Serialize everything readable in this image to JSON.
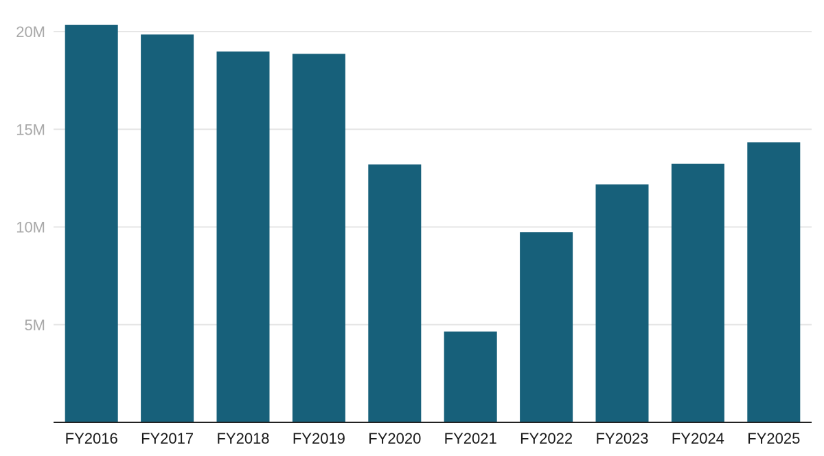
{
  "chart_data": {
    "type": "bar",
    "categories": [
      "FY2016",
      "FY2017",
      "FY2018",
      "FY2019",
      "FY2020",
      "FY2021",
      "FY2022",
      "FY2023",
      "FY2024",
      "FY2025"
    ],
    "values": [
      20.35,
      19.85,
      18.98,
      18.86,
      13.2,
      4.65,
      9.73,
      12.18,
      13.23,
      14.33
    ],
    "value_unit": "M",
    "ylim": [
      0,
      20
    ],
    "yticks": [
      5,
      10,
      15,
      20
    ],
    "ytick_labels": [
      "5M",
      "10M",
      "15M",
      "20M"
    ],
    "grid": true,
    "legend": "none",
    "title": "",
    "xlabel": "",
    "ylabel": "",
    "colors": {
      "bar": "#17607a",
      "grid": "#e6e6e6",
      "axis": "#222222",
      "ytick": "#a8a8a8",
      "xtick": "#1a1a1a"
    }
  }
}
